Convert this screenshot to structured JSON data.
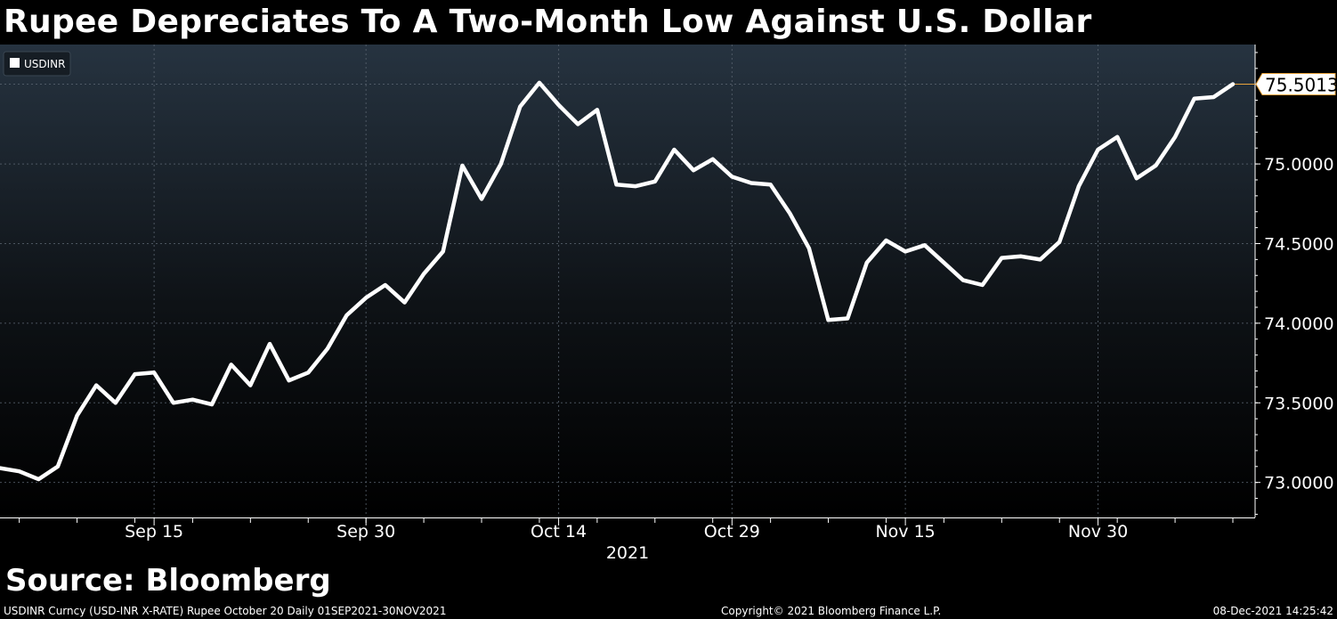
{
  "title": "Rupee Depreciates To A Two-Month Low Against U.S. Dollar",
  "source": "Source: Bloomberg",
  "footer": {
    "left": "USDINR Curncy (USD-INR X-RATE) Rupee October 20  Daily 01SEP2021-30NOV2021",
    "center": "Copyright© 2021 Bloomberg Finance L.P.",
    "right": "08-Dec-2021 14:25:42"
  },
  "colors": {
    "line": "#ffffff",
    "marker": "#e8a33c",
    "background_top": "#263340",
    "background_bottom": "#000000"
  },
  "chart_data": {
    "type": "line",
    "title": "Rupee Depreciates To A Two-Month Low Against U.S. Dollar",
    "xlabel": "2021",
    "ylabel": "",
    "ylim": [
      72.78,
      75.75
    ],
    "grid": true,
    "legend": "top-left",
    "x_tick_labels": [
      "Sep 15",
      "Sep 30",
      "Oct 14",
      "Oct 29",
      "Nov 15",
      "Nov 30"
    ],
    "x_tick_index": [
      8,
      19,
      29,
      38,
      47,
      57
    ],
    "y_ticks": [
      73.0,
      73.5,
      74.0,
      74.5,
      75.0
    ],
    "y_tick_labels": [
      "73.0000",
      "73.5000",
      "74.0000",
      "74.5000",
      "75.0000"
    ],
    "last_value_label": "75.5013",
    "series": [
      {
        "name": "USDINR",
        "values": [
          73.09,
          73.07,
          73.02,
          73.1,
          73.42,
          73.61,
          73.5,
          73.68,
          73.69,
          73.5,
          73.52,
          73.49,
          73.74,
          73.61,
          73.87,
          73.64,
          73.69,
          73.84,
          74.05,
          74.16,
          74.24,
          74.13,
          74.31,
          74.45,
          74.99,
          74.78,
          75.0,
          75.36,
          75.51,
          75.37,
          75.25,
          75.34,
          74.87,
          74.86,
          74.89,
          75.09,
          74.96,
          75.03,
          74.92,
          74.88,
          74.87,
          74.69,
          74.47,
          74.02,
          74.03,
          74.38,
          74.52,
          74.45,
          74.49,
          74.38,
          74.27,
          74.24,
          74.41,
          74.42,
          74.4,
          74.51,
          74.86,
          75.09,
          75.17,
          74.91,
          74.99,
          75.17,
          75.41,
          75.42,
          75.5013
        ]
      }
    ]
  }
}
